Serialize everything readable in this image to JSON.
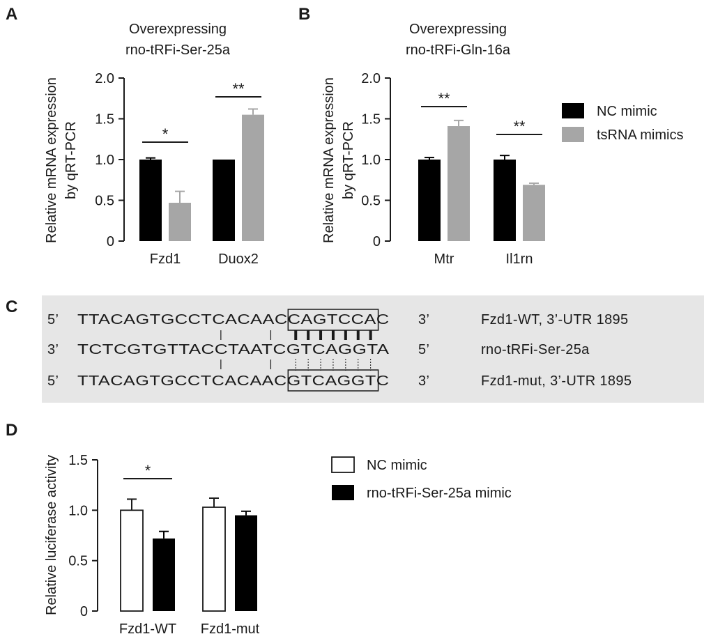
{
  "panels": {
    "A": "A",
    "B": "B",
    "C": "C",
    "D": "D"
  },
  "chart_data": [
    {
      "id": "A",
      "type": "bar",
      "title_lines": [
        "Overexpressing",
        "rno-tRFi-Ser-25a"
      ],
      "ylabel_lines": [
        "Relative mRNA expression",
        "by qRT-PCR"
      ],
      "categories": [
        "Fzd1",
        "Duox2"
      ],
      "series": [
        {
          "name": "NC mimic",
          "color": "#000000",
          "values": [
            1.0,
            1.0
          ],
          "errors": [
            0.02,
            0.0
          ]
        },
        {
          "name": "tsRNA mimics",
          "color": "#a6a6a6",
          "values": [
            0.47,
            1.55
          ],
          "errors": [
            0.14,
            0.07
          ]
        }
      ],
      "ylim": [
        0,
        2.0
      ],
      "yticks": [
        "0",
        "0.5",
        "1.0",
        "1.5",
        "2.0"
      ],
      "significance": [
        "*",
        "**"
      ]
    },
    {
      "id": "B",
      "type": "bar",
      "title_lines": [
        "Overexpressing",
        "rno-tRFi-Gln-16a"
      ],
      "ylabel_lines": [
        "Relative mRNA expression",
        "by qRT-PCR"
      ],
      "categories": [
        "Mtr",
        "Il1rn"
      ],
      "series": [
        {
          "name": "NC mimic",
          "color": "#000000",
          "values": [
            1.0,
            1.0
          ],
          "errors": [
            0.025,
            0.05
          ]
        },
        {
          "name": "tsRNA mimics",
          "color": "#a6a6a6",
          "values": [
            1.41,
            0.69
          ],
          "errors": [
            0.07,
            0.02
          ]
        }
      ],
      "ylim": [
        0,
        2.0
      ],
      "yticks": [
        "0",
        "0.5",
        "1.0",
        "1.5",
        "2.0"
      ],
      "significance": [
        "**",
        "**"
      ],
      "legend": [
        "NC mimic",
        "tsRNA mimics"
      ]
    },
    {
      "id": "D",
      "type": "bar",
      "ylabel_lines": [
        "Relative luciferase activity"
      ],
      "categories": [
        "Fzd1-WT",
        "Fzd1-mut"
      ],
      "series": [
        {
          "name": "NC mimic",
          "color": "#ffffff",
          "values": [
            1.0,
            1.03
          ],
          "errors": [
            0.11,
            0.09
          ]
        },
        {
          "name": "rno-tRFi-Ser-25a mimic",
          "color": "#000000",
          "values": [
            0.72,
            0.95
          ],
          "errors": [
            0.07,
            0.04
          ]
        }
      ],
      "ylim": [
        0,
        1.5
      ],
      "yticks": [
        "0",
        "0.5",
        "1.0",
        "1.5"
      ],
      "significance": [
        "*",
        ""
      ],
      "legend": [
        "NC mimic",
        "rno-tRFi-Ser-25a mimic"
      ]
    }
  ],
  "alignment": {
    "rows": [
      {
        "left": "5’",
        "seq": "TTACAGTGCCTCACAACCAGTCCAC",
        "right": "3’",
        "label": "Fzd1-WT, 3’-UTR 1895"
      },
      {
        "left": "3’",
        "seq": "TCTCGTGTTACCTAATCGTCAGGTA",
        "right": "5’",
        "label": "rno-tRFi-Ser-25a"
      },
      {
        "left": "5’",
        "seq": "TTACAGTGCCTCACAACGTCAGGTC",
        "right": "3’",
        "label": "Fzd1-mut, 3’-UTR 1895"
      }
    ],
    "seed_start": 17,
    "seed_end": 24,
    "pair_marks_top": [
      11,
      15
    ],
    "pair_marks_bottom": [
      11,
      15
    ]
  }
}
